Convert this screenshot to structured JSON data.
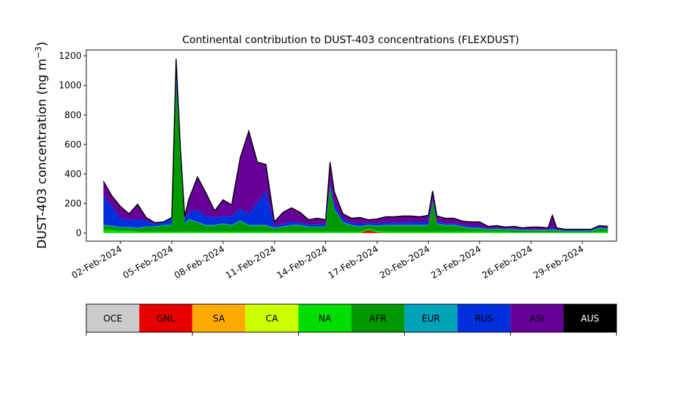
{
  "chart_data": {
    "type": "area",
    "stacked": true,
    "title": "Continental contribution to DUST-403 concentrations (FLEXDUST)",
    "ylabel": "DUST-403 concentration (ng m",
    "ylabel_superscript": "−3",
    "ylabel_close": ")",
    "ylim": [
      -55,
      1240
    ],
    "xlim": [
      "2024-01-31",
      "2024-03-02"
    ],
    "x_tick_labels": [
      "02-Feb-2024",
      "05-Feb-2024",
      "08-Feb-2024",
      "11-Feb-2024",
      "14-Feb-2024",
      "17-Feb-2024",
      "20-Feb-2024",
      "23-Feb-2024",
      "26-Feb-2024",
      "29-Feb-2024"
    ],
    "x_tick_dates": [
      "2024-02-02",
      "2024-02-05",
      "2024-02-08",
      "2024-02-11",
      "2024-02-14",
      "2024-02-17",
      "2024-02-20",
      "2024-02-23",
      "2024-02-26",
      "2024-02-29"
    ],
    "y_ticks": [
      0,
      200,
      400,
      600,
      800,
      1000,
      1200
    ],
    "y_tick_labels": [
      "0",
      "200",
      "400",
      "600",
      "800",
      "1000",
      "1200"
    ],
    "grid": false,
    "x": [
      "2024-02-01",
      "2024-02-01 12:00",
      "2024-02-02",
      "2024-02-02 12:00",
      "2024-02-03",
      "2024-02-03 12:00",
      "2024-02-04",
      "2024-02-04 12:00",
      "2024-02-05",
      "2024-02-05 06:00",
      "2024-02-05 12:00",
      "2024-02-05 18:00",
      "2024-02-06",
      "2024-02-06 12:00",
      "2024-02-07",
      "2024-02-07 12:00",
      "2024-02-08",
      "2024-02-08 12:00",
      "2024-02-09",
      "2024-02-09 12:00",
      "2024-02-10",
      "2024-02-10 12:00",
      "2024-02-11",
      "2024-02-11 12:00",
      "2024-02-12",
      "2024-02-12 12:00",
      "2024-02-13",
      "2024-02-13 12:00",
      "2024-02-14",
      "2024-02-14 06:00",
      "2024-02-14 12:00",
      "2024-02-15",
      "2024-02-15 12:00",
      "2024-02-16",
      "2024-02-16 12:00",
      "2024-02-17",
      "2024-02-17 12:00",
      "2024-02-18",
      "2024-02-18 12:00",
      "2024-02-19",
      "2024-02-19 12:00",
      "2024-02-20",
      "2024-02-20 06:00",
      "2024-02-20 12:00",
      "2024-02-21",
      "2024-02-21 12:00",
      "2024-02-22",
      "2024-02-22 12:00",
      "2024-02-23",
      "2024-02-23 12:00",
      "2024-02-24",
      "2024-02-24 12:00",
      "2024-02-25",
      "2024-02-25 12:00",
      "2024-02-26",
      "2024-02-26 12:00",
      "2024-02-27",
      "2024-02-27 06:00",
      "2024-02-27 12:00",
      "2024-02-28",
      "2024-02-28 12:00",
      "2024-02-29",
      "2024-02-29 12:00",
      "2024-03-01",
      "2024-03-01 12:00"
    ],
    "series": [
      {
        "name": "GNL",
        "color": "#e60000",
        "values": [
          0,
          0,
          0,
          0,
          0,
          0,
          0,
          0,
          0,
          0,
          0,
          0,
          0,
          0,
          0,
          0,
          0,
          0,
          0,
          0,
          0,
          0,
          0,
          0,
          0,
          0,
          0,
          0,
          0,
          0,
          0,
          0,
          0,
          0,
          20,
          5,
          0,
          0,
          0,
          0,
          0,
          0,
          0,
          0,
          0,
          0,
          0,
          0,
          0,
          0,
          0,
          0,
          0,
          0,
          0,
          0,
          0,
          0,
          0,
          0,
          0,
          0,
          0,
          0,
          0
        ]
      },
      {
        "name": "NA",
        "color": "#00dd00",
        "values": [
          20,
          20,
          15,
          15,
          10,
          10,
          10,
          10,
          10,
          10,
          10,
          10,
          10,
          10,
          10,
          10,
          10,
          10,
          10,
          10,
          10,
          10,
          10,
          10,
          10,
          10,
          10,
          10,
          10,
          10,
          10,
          10,
          10,
          10,
          10,
          10,
          10,
          10,
          10,
          10,
          10,
          10,
          10,
          10,
          10,
          10,
          10,
          10,
          10,
          10,
          10,
          10,
          5,
          5,
          5,
          5,
          5,
          5,
          5,
          5,
          5,
          5,
          5,
          10,
          10
        ]
      },
      {
        "name": "AFR",
        "color": "#009900",
        "values": [
          30,
          25,
          20,
          20,
          20,
          30,
          30,
          40,
          40,
          1000,
          500,
          50,
          80,
          60,
          40,
          40,
          50,
          40,
          70,
          40,
          40,
          40,
          20,
          30,
          40,
          40,
          30,
          30,
          30,
          300,
          150,
          60,
          40,
          30,
          20,
          30,
          40,
          40,
          40,
          40,
          40,
          40,
          200,
          50,
          40,
          40,
          30,
          20,
          20,
          10,
          15,
          10,
          15,
          10,
          10,
          10,
          10,
          15,
          10,
          5,
          5,
          5,
          5,
          20,
          15
        ]
      },
      {
        "name": "EUR",
        "color": "#00a3b8",
        "values": [
          5,
          5,
          5,
          5,
          5,
          5,
          5,
          5,
          5,
          5,
          5,
          5,
          5,
          5,
          5,
          5,
          5,
          5,
          5,
          5,
          5,
          5,
          5,
          5,
          5,
          5,
          5,
          5,
          5,
          5,
          5,
          5,
          5,
          5,
          5,
          5,
          5,
          5,
          5,
          5,
          5,
          5,
          5,
          5,
          5,
          5,
          5,
          5,
          5,
          5,
          5,
          5,
          5,
          5,
          5,
          5,
          5,
          5,
          5,
          5,
          5,
          5,
          5,
          5,
          5
        ]
      },
      {
        "name": "RUS",
        "color": "#0030dd",
        "values": [
          200,
          130,
          60,
          50,
          60,
          40,
          15,
          20,
          50,
          60,
          20,
          30,
          50,
          80,
          60,
          50,
          50,
          60,
          80,
          80,
          150,
          230,
          10,
          20,
          20,
          15,
          15,
          15,
          20,
          30,
          30,
          20,
          15,
          15,
          15,
          15,
          15,
          15,
          15,
          20,
          20,
          20,
          15,
          15,
          10,
          10,
          10,
          10,
          10,
          5,
          5,
          5,
          5,
          5,
          5,
          5,
          5,
          10,
          5,
          5,
          5,
          5,
          5,
          5,
          5
        ]
      },
      {
        "name": "ASI",
        "color": "#660099",
        "values": [
          95,
          70,
          80,
          40,
          100,
          20,
          10,
          0,
          0,
          105,
          45,
          20,
          85,
          225,
          155,
          45,
          110,
          75,
          345,
          555,
          275,
          180,
          30,
          75,
          95,
          70,
          30,
          40,
          25,
          135,
          85,
          35,
          30,
          45,
          20,
          30,
          40,
          40,
          45,
          40,
          35,
          45,
          55,
          35,
          35,
          35,
          25,
          30,
          30,
          15,
          15,
          10,
          15,
          10,
          15,
          15,
          10,
          85,
          10,
          5,
          5,
          5,
          5,
          10,
          10
        ]
      }
    ],
    "total_line_color": "#000000"
  },
  "legend_bar": {
    "items": [
      {
        "label": "OCE",
        "color": "#cccccc",
        "text_color": "#000000"
      },
      {
        "label": "GNL",
        "color": "#e60000",
        "text_color": "#000000"
      },
      {
        "label": "SA",
        "color": "#ffaa00",
        "text_color": "#000000"
      },
      {
        "label": "CA",
        "color": "#ccff00",
        "text_color": "#000000"
      },
      {
        "label": "NA",
        "color": "#00dd00",
        "text_color": "#000000"
      },
      {
        "label": "AFR",
        "color": "#009900",
        "text_color": "#000000"
      },
      {
        "label": "EUR",
        "color": "#00a3b8",
        "text_color": "#000000"
      },
      {
        "label": "RUS",
        "color": "#0030dd",
        "text_color": "#000000"
      },
      {
        "label": "ASI",
        "color": "#660099",
        "text_color": "#000000"
      },
      {
        "label": "AUS",
        "color": "#000000",
        "text_color": "#ffffff"
      }
    ]
  }
}
